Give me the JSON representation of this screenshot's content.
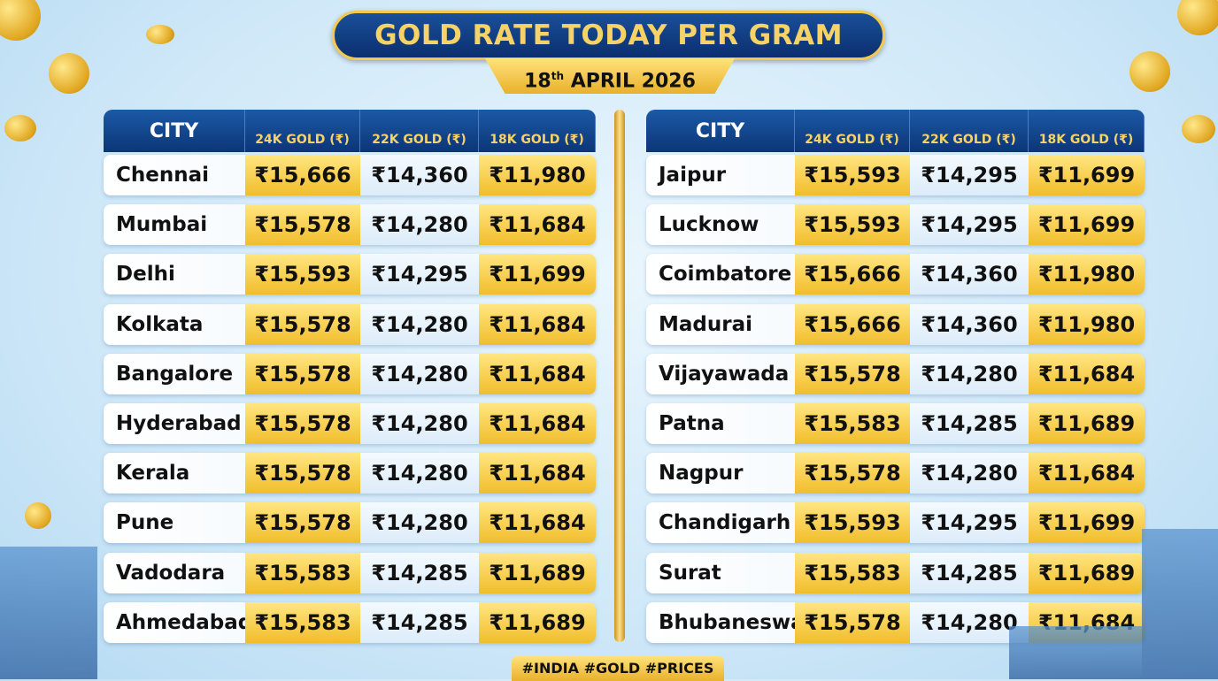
{
  "title": "GOLD RATE TODAY PER GRAM",
  "date": {
    "day": "18",
    "suffix": "th",
    "rest": " APRIL 2026"
  },
  "columns": [
    "CITY",
    "24K GOLD (₹)",
    "22K GOLD (₹)",
    "18K GOLD (₹)"
  ],
  "left_table": [
    [
      "Chennai",
      "₹15,666",
      "₹14,360",
      "₹11,980"
    ],
    [
      "Mumbai",
      "₹15,578",
      "₹14,280",
      "₹11,684"
    ],
    [
      "Delhi",
      "₹15,593",
      "₹14,295",
      "₹11,699"
    ],
    [
      "Kolkata",
      "₹15,578",
      "₹14,280",
      "₹11,684"
    ],
    [
      "Bangalore",
      "₹15,578",
      "₹14,280",
      "₹11,684"
    ],
    [
      "Hyderabad",
      "₹15,578",
      "₹14,280",
      "₹11,684"
    ],
    [
      "Kerala",
      "₹15,578",
      "₹14,280",
      "₹11,684"
    ],
    [
      "Pune",
      "₹15,578",
      "₹14,280",
      "₹11,684"
    ],
    [
      "Vadodara",
      "₹15,583",
      "₹14,285",
      "₹11,689"
    ],
    [
      "Ahmedabad",
      "₹15,583",
      "₹14,285",
      "₹11,689"
    ]
  ],
  "right_table": [
    [
      "Jaipur",
      "₹15,593",
      "₹14,295",
      "₹11,699"
    ],
    [
      "Lucknow",
      "₹15,593",
      "₹14,295",
      "₹11,699"
    ],
    [
      "Coimbatore",
      "₹15,666",
      "₹14,360",
      "₹11,980"
    ],
    [
      "Madurai",
      "₹15,666",
      "₹14,360",
      "₹11,980"
    ],
    [
      "Vijayawada",
      "₹15,578",
      "₹14,280",
      "₹11,684"
    ],
    [
      "Patna",
      "₹15,583",
      "₹14,285",
      "₹11,689"
    ],
    [
      "Nagpur",
      "₹15,578",
      "₹14,280",
      "₹11,684"
    ],
    [
      "Chandigarh",
      "₹15,593",
      "₹14,295",
      "₹11,699"
    ],
    [
      "Surat",
      "₹15,583",
      "₹14,285",
      "₹11,689"
    ],
    [
      "Bhubaneswar",
      "₹15,578",
      "₹14,280",
      "₹11,684"
    ]
  ],
  "footer": "#INDIA #GOLD #PRICES",
  "colors": {
    "navy": "#0c3577",
    "gold": "#f1bd2c",
    "background": "#cfe8f8"
  }
}
